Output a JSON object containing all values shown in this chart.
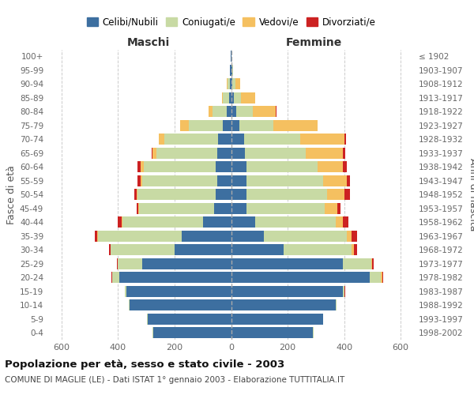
{
  "age_groups": [
    "0-4",
    "5-9",
    "10-14",
    "15-19",
    "20-24",
    "25-29",
    "30-34",
    "35-39",
    "40-44",
    "45-49",
    "50-54",
    "55-59",
    "60-64",
    "65-69",
    "70-74",
    "75-79",
    "80-84",
    "85-89",
    "90-94",
    "95-99",
    "100+"
  ],
  "birth_years": [
    "1998-2002",
    "1993-1997",
    "1988-1992",
    "1983-1987",
    "1978-1982",
    "1973-1977",
    "1968-1972",
    "1963-1967",
    "1958-1962",
    "1953-1957",
    "1948-1952",
    "1943-1947",
    "1938-1942",
    "1933-1937",
    "1928-1932",
    "1923-1927",
    "1918-1922",
    "1913-1917",
    "1908-1912",
    "1903-1907",
    "≤ 1902"
  ],
  "maschi": {
    "celibi": [
      275,
      295,
      360,
      370,
      395,
      315,
      200,
      175,
      100,
      60,
      55,
      50,
      55,
      50,
      45,
      30,
      15,
      8,
      5,
      3,
      2
    ],
    "coniugati": [
      2,
      2,
      2,
      5,
      25,
      85,
      225,
      295,
      285,
      265,
      275,
      265,
      255,
      215,
      190,
      120,
      50,
      20,
      8,
      2,
      0
    ],
    "vedovi": [
      0,
      0,
      0,
      1,
      2,
      2,
      2,
      3,
      3,
      3,
      5,
      5,
      10,
      12,
      20,
      30,
      15,
      5,
      2,
      0,
      0
    ],
    "divorziati": [
      0,
      0,
      0,
      1,
      2,
      3,
      5,
      8,
      12,
      5,
      8,
      12,
      10,
      3,
      2,
      0,
      0,
      0,
      0,
      0,
      0
    ]
  },
  "femmine": {
    "nubili": [
      290,
      325,
      370,
      395,
      490,
      395,
      185,
      115,
      85,
      55,
      55,
      55,
      55,
      50,
      45,
      30,
      18,
      10,
      5,
      3,
      2
    ],
    "coniugate": [
      2,
      2,
      2,
      5,
      40,
      100,
      240,
      295,
      285,
      275,
      285,
      270,
      250,
      215,
      200,
      120,
      60,
      25,
      10,
      3,
      0
    ],
    "vedove": [
      0,
      0,
      1,
      2,
      5,
      5,
      10,
      15,
      25,
      45,
      60,
      85,
      90,
      130,
      155,
      155,
      80,
      50,
      18,
      2,
      0
    ],
    "divorziate": [
      0,
      0,
      0,
      1,
      3,
      5,
      10,
      20,
      20,
      12,
      20,
      12,
      15,
      8,
      8,
      2,
      2,
      0,
      0,
      0,
      0
    ]
  },
  "colors": {
    "celibi": "#3d6fa0",
    "coniugati": "#c8daa4",
    "vedovi": "#f5c060",
    "divorziati": "#cc2222"
  },
  "legend_labels": [
    "Celibi/Nubili",
    "Coniugati/e",
    "Vedovi/e",
    "Divorziati/e"
  ],
  "xlim": 650,
  "title": "Popolazione per età, sesso e stato civile - 2003",
  "subtitle": "COMUNE DI MAGLIE (LE) - Dati ISTAT 1° gennaio 2003 - Elaborazione TUTTITALIA.IT",
  "xlabel_left": "Maschi",
  "xlabel_right": "Femmine",
  "ylabel_left": "Fasce di età",
  "ylabel_right": "Anni di nascita"
}
